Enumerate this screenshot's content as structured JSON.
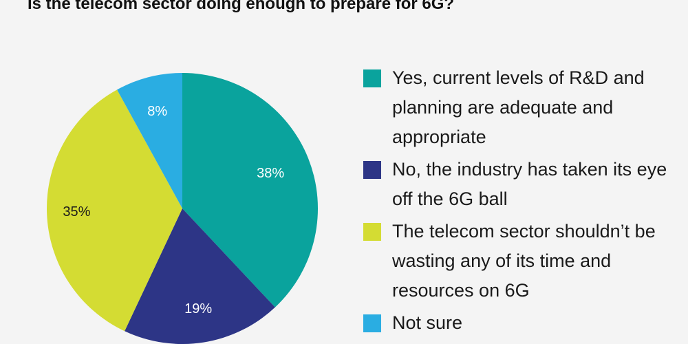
{
  "title": "Is the telecom sector doing enough to prepare for 6G?",
  "chart_data": {
    "type": "pie",
    "title": "Is the telecom sector doing enough to prepare for 6G?",
    "legend_position": "right",
    "start_angle": "12 o'clock, clockwise",
    "slices": [
      {
        "name": "Yes, current levels of R&D and planning are adequate and appropriate",
        "value": 38,
        "label": "38%",
        "color": "#0aa39d",
        "label_color": "#ffffff"
      },
      {
        "name": "No, the industry has taken its eye off the 6G ball",
        "value": 19,
        "label": "19%",
        "color": "#2d3586",
        "label_color": "#ffffff"
      },
      {
        "name": "The telecom sector shouldn't be wasting any of its time and resources on 6G",
        "value": 35,
        "label": "35%",
        "color": "#d4dc33",
        "label_color": "#1a1a1a"
      },
      {
        "name": "Not sure",
        "value": 8,
        "label": "8%",
        "color": "#2aade2",
        "label_color": "#ffffff"
      }
    ]
  },
  "legend": {
    "items": [
      {
        "label": "Yes, current levels of R&D and planning are adequate and appropriate",
        "color": "#0aa39d"
      },
      {
        "label": "No, the industry has taken its eye off the 6G ball",
        "color": "#2d3586"
      },
      {
        "label": "The telecom sector shouldn’t be wasting any of its time and resources on 6G",
        "color": "#d4dc33"
      },
      {
        "label": "Not sure",
        "color": "#2aade2"
      }
    ]
  }
}
